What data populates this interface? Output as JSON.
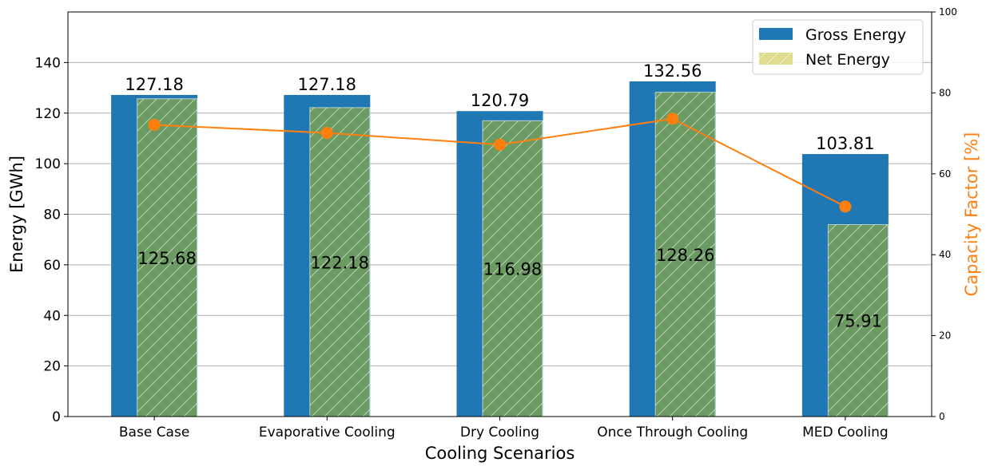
{
  "chart_data": {
    "type": "bar",
    "categories": [
      "Base Case",
      "Evaporative Cooling",
      "Dry Cooling",
      "Once Through Cooling",
      "MED Cooling"
    ],
    "series": [
      {
        "name": "Gross Energy",
        "values": [
          127.18,
          127.18,
          120.79,
          132.56,
          103.81
        ],
        "color": "#1f77b4"
      },
      {
        "name": "Net Energy",
        "values": [
          125.68,
          122.18,
          116.98,
          128.26,
          75.91
        ],
        "color": "#6b9a62",
        "hatch": true
      }
    ],
    "line_series": {
      "axis": "right",
      "color": "#ff7f0e",
      "values": [
        72.1,
        70.1,
        67.2,
        73.6,
        51.9
      ]
    },
    "xlabel": "Cooling Scenarios",
    "ylabel": "Energy [GWh]",
    "y2label": "Capacity Factor [%]",
    "ylim": [
      0,
      160
    ],
    "yticks": [
      0,
      20,
      40,
      60,
      80,
      100,
      120,
      140
    ],
    "y2lim": [
      0,
      100
    ],
    "y2ticks": [
      0,
      20,
      40,
      60,
      80,
      100
    ],
    "grid": true,
    "legend_position": "top-right"
  }
}
